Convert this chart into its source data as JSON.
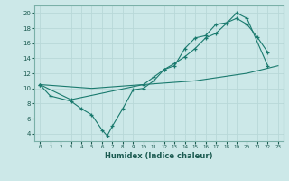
{
  "xlabel": "Humidex (Indice chaleur)",
  "bg_color": "#cce8e8",
  "grid_color": "#b8d8d8",
  "line_color": "#1a7a6e",
  "xlim": [
    -0.5,
    23.5
  ],
  "ylim": [
    3,
    21
  ],
  "xticks": [
    0,
    1,
    2,
    3,
    4,
    5,
    6,
    7,
    8,
    9,
    10,
    11,
    12,
    13,
    14,
    15,
    16,
    17,
    18,
    19,
    20,
    21,
    22,
    23
  ],
  "yticks": [
    4,
    6,
    8,
    10,
    12,
    14,
    16,
    18,
    20
  ],
  "line1_x": [
    0,
    1,
    3,
    4,
    5,
    6,
    6.5,
    7,
    8,
    9,
    10,
    11,
    12,
    13,
    14,
    15,
    16,
    17,
    18,
    19,
    20,
    21,
    22
  ],
  "line1_y": [
    10.5,
    9.0,
    8.3,
    7.3,
    6.5,
    4.5,
    3.7,
    5.0,
    7.3,
    9.8,
    10.0,
    11.0,
    12.5,
    13.0,
    15.3,
    16.7,
    17.0,
    18.5,
    18.7,
    19.3,
    18.5,
    16.8,
    14.8
  ],
  "line2_x": [
    0,
    3,
    10,
    11,
    12,
    13,
    14,
    15,
    16,
    17,
    18,
    19,
    20,
    22
  ],
  "line2_y": [
    10.5,
    8.5,
    10.5,
    11.5,
    12.5,
    13.3,
    14.2,
    15.3,
    16.7,
    17.3,
    18.6,
    20.0,
    19.3,
    13.0
  ],
  "line3_x": [
    0,
    5,
    10,
    15,
    20,
    23
  ],
  "line3_y": [
    10.5,
    10.0,
    10.5,
    11.0,
    12.0,
    13.0
  ]
}
